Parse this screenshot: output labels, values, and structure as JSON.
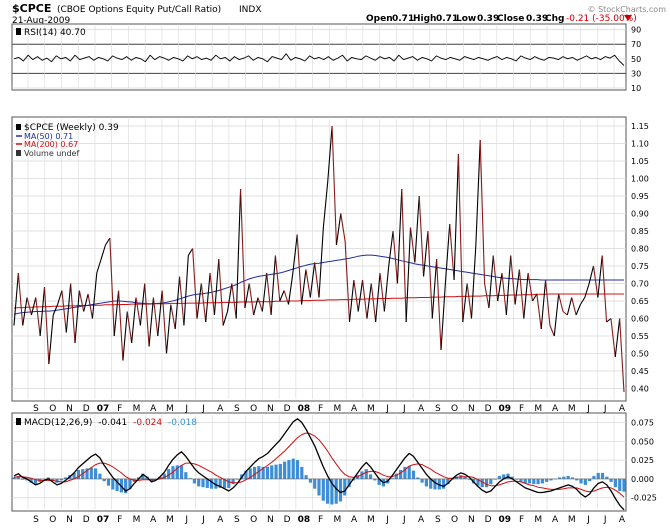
{
  "header": {
    "symbol": "$CPCE",
    "description": "(CBOE Options Equity Put/Call Ratio)",
    "exchange": "INDX",
    "date": "21-Aug-2009",
    "open_label": "Open",
    "open": "0.71",
    "high_label": "High",
    "high": "0.71",
    "low_label": "Low",
    "low": "0.39",
    "close_label": "Close",
    "close": "0.39",
    "chg_label": "Chg",
    "chg": "-0.21 (-35.00%)",
    "watermark": "© StockCharts.com"
  },
  "colors": {
    "price": "#000000",
    "price_down": "#8b1a1a",
    "ma50": "#1f2e9e",
    "ma200": "#d01010",
    "macd": "#000000",
    "signal": "#d01010",
    "hist": "#3c8fd6",
    "grid": "#d8d8d8"
  },
  "rsi_panel": {
    "label": "RSI(14) 40.70",
    "ticks": [
      "90",
      "70",
      "50",
      "30",
      "10"
    ],
    "ylim": [
      10,
      95
    ]
  },
  "price_panel": {
    "legend": [
      {
        "text": "$CPCE (Weekly) 0.39",
        "color": "#000000"
      },
      {
        "text": "MA(50) 0.71",
        "color": "#1f2e9e"
      },
      {
        "text": "MA(200) 0.67",
        "color": "#d01010"
      },
      {
        "text": "Volume undef",
        "color": "#333333"
      }
    ],
    "ticks": [
      "1.15",
      "1.10",
      "1.05",
      "1.00",
      "0.95",
      "0.90",
      "0.85",
      "0.80",
      "0.75",
      "0.70",
      "0.65",
      "0.60",
      "0.55",
      "0.50",
      "0.45",
      "0.40"
    ]
  },
  "macd_panel": {
    "label": "MACD(12,26,9)",
    "macd": "-0.041",
    "signal": "-0.024",
    "hist": "-0.018",
    "ticks": [
      "0.075",
      "0.050",
      "0.025",
      "0.000",
      "-0.025"
    ]
  },
  "x_axis": {
    "labels": [
      "S",
      "O",
      "N",
      "D",
      "07",
      "F",
      "M",
      "A",
      "M",
      "J",
      "J",
      "A",
      "S",
      "O",
      "N",
      "D",
      "08",
      "F",
      "M",
      "A",
      "M",
      "J",
      "J",
      "A",
      "S",
      "O",
      "N",
      "D",
      "09",
      "F",
      "M",
      "A",
      "M",
      "J",
      "J",
      "A"
    ]
  },
  "chart_data": [
    {
      "type": "line",
      "title": "RSI(14) 40.70",
      "ylim": [
        10,
        95
      ],
      "values": [
        50,
        52,
        47,
        55,
        49,
        53,
        48,
        51,
        46,
        54,
        50,
        52,
        47,
        55,
        49,
        51,
        53,
        48,
        52,
        50,
        47,
        54,
        51,
        49,
        53,
        48,
        52,
        50,
        46,
        55,
        49,
        53,
        51,
        48,
        52,
        50,
        47,
        54,
        50,
        53,
        49,
        51,
        48,
        55,
        50,
        52,
        47,
        53,
        49,
        51,
        54,
        48,
        52,
        50,
        46,
        53,
        51,
        49,
        57,
        48,
        52,
        50,
        47,
        54,
        50,
        52,
        49,
        53,
        48,
        51,
        55,
        47,
        52,
        50,
        49,
        54,
        51,
        48,
        53,
        50,
        52,
        47,
        55,
        49,
        51,
        53,
        48,
        52,
        50,
        47,
        54,
        51,
        49,
        52,
        50,
        48,
        53,
        51,
        49,
        52,
        50,
        48,
        51,
        53,
        49,
        52,
        50,
        47,
        54,
        51,
        49,
        53,
        50,
        48,
        52,
        51,
        49,
        53,
        50,
        52,
        48,
        51,
        54,
        50,
        52,
        49,
        53,
        51,
        55,
        47,
        41
      ],
      "grid": true
    },
    {
      "type": "line",
      "title": "$CPCE (Weekly) 0.39",
      "ylim": [
        0.37,
        1.17
      ],
      "series": [
        {
          "name": "$CPCE (Weekly) 0.39",
          "values": [
            0.58,
            0.73,
            0.58,
            0.66,
            0.61,
            0.66,
            0.55,
            0.69,
            0.47,
            0.61,
            0.64,
            0.68,
            0.56,
            0.7,
            0.53,
            0.68,
            0.62,
            0.67,
            0.6,
            0.73,
            0.77,
            0.81,
            0.83,
            0.55,
            0.68,
            0.48,
            0.62,
            0.53,
            0.66,
            0.58,
            0.7,
            0.52,
            0.66,
            0.55,
            0.68,
            0.5,
            0.64,
            0.57,
            0.72,
            0.58,
            0.78,
            0.8,
            0.6,
            0.7,
            0.59,
            0.73,
            0.61,
            0.77,
            0.58,
            0.62,
            0.7,
            0.6,
            0.97,
            0.63,
            0.7,
            0.61,
            0.66,
            0.62,
            0.73,
            0.61,
            0.78,
            0.65,
            0.68,
            0.64,
            0.73,
            0.84,
            0.64,
            0.74,
            0.66,
            0.76,
            0.66,
            0.86,
            0.99,
            1.15,
            0.81,
            0.9,
            0.82,
            0.59,
            0.71,
            0.62,
            0.71,
            0.6,
            0.7,
            0.59,
            0.73,
            0.62,
            0.75,
            0.85,
            0.7,
            0.97,
            0.59,
            0.86,
            0.76,
            0.95,
            0.72,
            0.85,
            0.6,
            0.77,
            0.51,
            0.7,
            0.87,
            0.71,
            1.07,
            0.59,
            0.7,
            0.6,
            0.81,
            1.11,
            0.7,
            0.63,
            0.78,
            0.65,
            0.73,
            0.61,
            0.78,
            0.64,
            0.74,
            0.6,
            0.73,
            0.65,
            0.67,
            0.57,
            0.71,
            0.58,
            0.55,
            0.67,
            0.62,
            0.61,
            0.66,
            0.61,
            0.64,
            0.66,
            0.7,
            0.75,
            0.66,
            0.78,
            0.59,
            0.6,
            0.49,
            0.6,
            0.39
          ]
        },
        {
          "name": "MA(50) 0.71",
          "values": [
            0.612,
            0.615,
            0.617,
            0.618,
            0.619,
            0.62,
            0.62,
            0.621,
            0.621,
            0.622,
            0.624,
            0.626,
            0.628,
            0.63,
            0.632,
            0.634,
            0.636,
            0.638,
            0.64,
            0.642,
            0.644,
            0.646,
            0.648,
            0.65,
            0.65,
            0.649,
            0.648,
            0.647,
            0.645,
            0.644,
            0.643,
            0.642,
            0.642,
            0.643,
            0.644,
            0.646,
            0.649,
            0.652,
            0.656,
            0.66,
            0.664,
            0.667,
            0.669,
            0.67,
            0.672,
            0.674,
            0.677,
            0.68,
            0.684,
            0.688,
            0.692,
            0.697,
            0.703,
            0.708,
            0.713,
            0.717,
            0.72,
            0.722,
            0.724,
            0.726,
            0.728,
            0.73,
            0.733,
            0.737,
            0.741,
            0.745,
            0.749,
            0.752,
            0.755,
            0.757,
            0.758,
            0.76,
            0.762,
            0.764,
            0.766,
            0.768,
            0.77,
            0.772,
            0.775,
            0.778,
            0.78,
            0.781,
            0.781,
            0.78,
            0.778,
            0.776,
            0.774,
            0.771,
            0.768,
            0.765,
            0.762,
            0.759,
            0.756,
            0.754,
            0.752,
            0.75,
            0.748,
            0.746,
            0.744,
            0.742,
            0.74,
            0.738,
            0.736,
            0.734,
            0.732,
            0.73,
            0.728,
            0.726,
            0.724,
            0.722,
            0.72,
            0.718,
            0.716,
            0.715,
            0.714,
            0.713,
            0.712,
            0.711,
            0.711,
            0.711,
            0.711,
            0.71,
            0.71,
            0.71,
            0.71,
            0.71,
            0.71,
            0.71,
            0.71,
            0.71,
            0.71,
            0.71,
            0.71,
            0.71,
            0.71,
            0.71,
            0.71,
            0.71,
            0.71,
            0.71,
            0.71
          ]
        },
        {
          "name": "MA(200) 0.67",
          "values": [
            0.63,
            0.631,
            0.631,
            0.632,
            0.632,
            0.633,
            0.633,
            0.634,
            0.634,
            0.635,
            0.635,
            0.635,
            0.636,
            0.636,
            0.636,
            0.637,
            0.637,
            0.637,
            0.638,
            0.638,
            0.638,
            0.639,
            0.639,
            0.639,
            0.64,
            0.64,
            0.64,
            0.641,
            0.641,
            0.641,
            0.641,
            0.641,
            0.642,
            0.642,
            0.642,
            0.642,
            0.643,
            0.643,
            0.643,
            0.643,
            0.644,
            0.644,
            0.644,
            0.644,
            0.645,
            0.645,
            0.645,
            0.645,
            0.646,
            0.646,
            0.646,
            0.646,
            0.647,
            0.647,
            0.647,
            0.647,
            0.648,
            0.648,
            0.648,
            0.648,
            0.649,
            0.649,
            0.649,
            0.65,
            0.65,
            0.65,
            0.651,
            0.651,
            0.651,
            0.652,
            0.652,
            0.652,
            0.653,
            0.653,
            0.653,
            0.654,
            0.654,
            0.654,
            0.655,
            0.655,
            0.655,
            0.656,
            0.656,
            0.656,
            0.657,
            0.657,
            0.657,
            0.658,
            0.658,
            0.658,
            0.659,
            0.659,
            0.659,
            0.66,
            0.66,
            0.66,
            0.661,
            0.661,
            0.661,
            0.662,
            0.662,
            0.662,
            0.663,
            0.663,
            0.663,
            0.664,
            0.664,
            0.664,
            0.665,
            0.665,
            0.665,
            0.666,
            0.666,
            0.666,
            0.667,
            0.667,
            0.667,
            0.668,
            0.668,
            0.668,
            0.669,
            0.669,
            0.669,
            0.67,
            0.67,
            0.67,
            0.67,
            0.67,
            0.67,
            0.67,
            0.67,
            0.67,
            0.67,
            0.67,
            0.67,
            0.67,
            0.67,
            0.67,
            0.67,
            0.67,
            0.67
          ]
        }
      ],
      "grid": true
    },
    {
      "type": "line",
      "title": "MACD(12,26,9)",
      "ylim": [
        -0.04,
        0.085
      ],
      "series": [
        {
          "name": "MACD(12,26,9)",
          "values": [
            0.004,
            0.007,
            0.002,
            0.0,
            -0.004,
            -0.008,
            -0.006,
            -0.002,
            0.0,
            -0.004,
            -0.008,
            -0.006,
            -0.002,
            0.003,
            0.008,
            0.015,
            0.02,
            0.025,
            0.03,
            0.033,
            0.028,
            0.018,
            0.01,
            0.002,
            -0.004,
            -0.01,
            -0.016,
            -0.013,
            -0.006,
            0.0,
            0.006,
            0.002,
            -0.004,
            -0.002,
            0.003,
            0.009,
            0.018,
            0.026,
            0.032,
            0.036,
            0.03,
            0.022,
            0.014,
            0.008,
            0.004,
            0.0,
            -0.004,
            -0.008,
            -0.01,
            -0.013,
            -0.016,
            -0.012,
            -0.006,
            0.002,
            0.01,
            0.016,
            0.022,
            0.027,
            0.03,
            0.034,
            0.04,
            0.046,
            0.052,
            0.06,
            0.068,
            0.076,
            0.08,
            0.075,
            0.066,
            0.055,
            0.044,
            0.03,
            0.016,
            0.004,
            -0.006,
            -0.013,
            -0.018,
            -0.016,
            -0.008,
            0.0,
            0.008,
            0.016,
            0.022,
            0.016,
            0.008,
            0.0,
            -0.005,
            -0.003,
            0.004,
            0.012,
            0.02,
            0.028,
            0.034,
            0.03,
            0.022,
            0.014,
            0.006,
            0.0,
            -0.005,
            -0.008,
            -0.01,
            -0.006,
            0.0,
            0.005,
            0.008,
            0.006,
            0.002,
            -0.004,
            -0.01,
            -0.015,
            -0.018,
            -0.016,
            -0.01,
            -0.004,
            0.0,
            0.003,
            0.0,
            -0.004,
            -0.008,
            -0.012,
            -0.014,
            -0.016,
            -0.018,
            -0.018,
            -0.017,
            -0.016,
            -0.014,
            -0.012,
            -0.01,
            -0.008,
            -0.01,
            -0.014,
            -0.02,
            -0.024,
            -0.02,
            -0.012,
            -0.006,
            -0.004,
            -0.008,
            -0.016,
            -0.026,
            -0.035,
            -0.041
          ]
        },
        {
          "name": "signal",
          "values": [
            0.002,
            0.003,
            0.003,
            0.002,
            0.001,
            -0.001,
            -0.002,
            -0.002,
            -0.002,
            -0.002,
            -0.003,
            -0.004,
            -0.004,
            -0.002,
            0.0,
            0.003,
            0.007,
            0.011,
            0.015,
            0.019,
            0.021,
            0.021,
            0.019,
            0.016,
            0.012,
            0.008,
            0.003,
            0.0,
            -0.002,
            -0.002,
            -0.001,
            -0.001,
            -0.001,
            -0.001,
            0.0,
            0.002,
            0.005,
            0.009,
            0.014,
            0.018,
            0.021,
            0.021,
            0.02,
            0.018,
            0.015,
            0.012,
            0.009,
            0.005,
            0.002,
            -0.001,
            -0.004,
            -0.005,
            -0.005,
            -0.004,
            -0.001,
            0.002,
            0.006,
            0.01,
            0.014,
            0.018,
            0.022,
            0.027,
            0.032,
            0.037,
            0.043,
            0.049,
            0.055,
            0.059,
            0.061,
            0.06,
            0.057,
            0.052,
            0.045,
            0.037,
            0.028,
            0.02,
            0.012,
            0.006,
            0.003,
            0.002,
            0.003,
            0.006,
            0.009,
            0.01,
            0.01,
            0.008,
            0.005,
            0.003,
            0.003,
            0.005,
            0.008,
            0.012,
            0.017,
            0.019,
            0.02,
            0.019,
            0.016,
            0.013,
            0.009,
            0.006,
            0.003,
            0.001,
            0.001,
            0.002,
            0.003,
            0.003,
            0.003,
            0.002,
            -0.001,
            -0.004,
            -0.007,
            -0.009,
            -0.009,
            -0.008,
            -0.006,
            -0.004,
            -0.003,
            -0.003,
            -0.004,
            -0.006,
            -0.008,
            -0.009,
            -0.011,
            -0.012,
            -0.013,
            -0.014,
            -0.014,
            -0.014,
            -0.013,
            -0.012,
            -0.012,
            -0.012,
            -0.014,
            -0.016,
            -0.017,
            -0.016,
            -0.014,
            -0.012,
            -0.011,
            -0.012,
            -0.015,
            -0.019,
            -0.024
          ]
        }
      ],
      "grid": true
    }
  ]
}
